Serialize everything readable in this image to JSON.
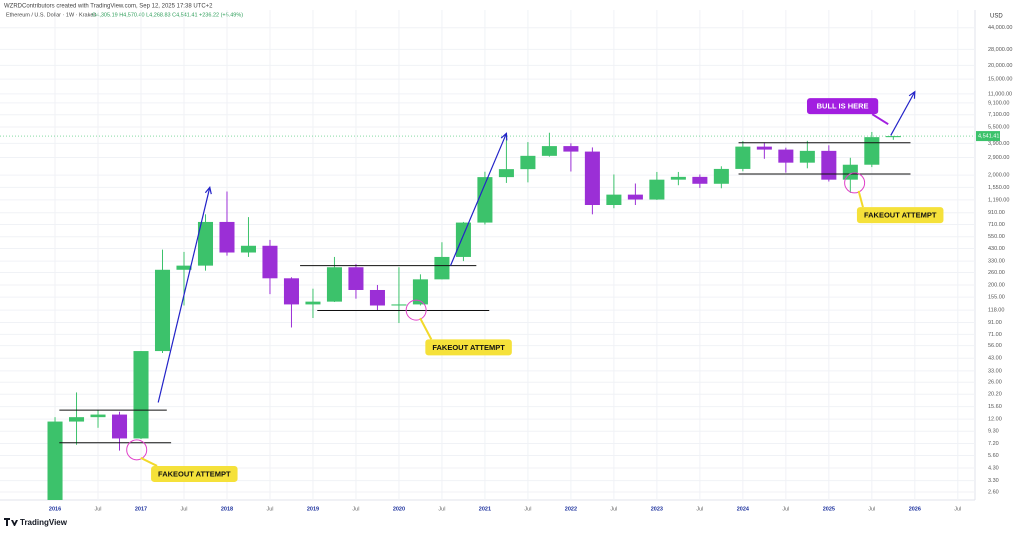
{
  "header": {
    "credit": "WZRDContributors created with TradingView.com, Sep 12, 2025 17:38 UTC+2",
    "symbol": "Ethereum / U.S. Dollar · 1W · Kraken",
    "ohlc": "O4,305.19 H4,570.40 L4,268.83 C4,541.41 +236.22 (+5.49%)",
    "currency": "USD",
    "last_price": "4,541.41",
    "logo": "TradingView"
  },
  "chart_data": {
    "type": "candlestick",
    "log_scale": true,
    "grid": true,
    "up_color": "#3cc26b",
    "down_color": "#9b2fd6",
    "x": [
      2016.0,
      2016.25,
      2016.5,
      2016.75,
      2017.0,
      2017.25,
      2017.5,
      2017.75,
      2018.0,
      2018.25,
      2018.5,
      2018.75,
      2019.0,
      2019.25,
      2019.5,
      2019.75,
      2020.0,
      2020.25,
      2020.5,
      2020.75,
      2021.0,
      2021.25,
      2021.5,
      2021.75,
      2022.0,
      2022.25,
      2022.5,
      2022.75,
      2023.0,
      2023.25,
      2023.5,
      2023.75,
      2024.0,
      2024.25,
      2024.5,
      2024.75,
      2025.0,
      2025.25,
      2025.5,
      2025.75
    ],
    "open": [
      0.95,
      11.4,
      12.5,
      13.2,
      8,
      50,
      275,
      300,
      750,
      395,
      455,
      230,
      133,
      141,
      290,
      180,
      130,
      133,
      225,
      360,
      740,
      1920,
      2270,
      3000,
      3680,
      3280,
      1070,
      1330,
      1200,
      1820,
      1930,
      1670,
      2280,
      3640,
      3420,
      2600,
      3330,
      1820,
      2490,
      4440
    ],
    "high": [
      12.5,
      21,
      14.5,
      14,
      50,
      420,
      400,
      880,
      1420,
      830,
      515,
      235,
      185,
      360,
      310,
      200,
      290,
      250,
      490,
      750,
      2150,
      4380,
      4000,
      4870,
      3900,
      3580,
      2030,
      1680,
      2140,
      2140,
      2030,
      2410,
      4090,
      3980,
      3560,
      4110,
      3740,
      2880,
      4950,
      4560
    ],
    "low": [
      0.93,
      7,
      10,
      6.2,
      7.9,
      48,
      130,
      270,
      370,
      360,
      165,
      82,
      100,
      140,
      150,
      117,
      90,
      130,
      225,
      330,
      710,
      1700,
      1720,
      2950,
      2160,
      880,
      1000,
      1070,
      1190,
      1620,
      1530,
      1520,
      2170,
      2820,
      2110,
      2310,
      1750,
      1380,
      2370,
      4200
    ],
    "close": [
      11.4,
      12.5,
      13.2,
      8,
      50,
      275,
      300,
      750,
      395,
      455,
      230,
      133,
      141,
      290,
      180,
      130,
      133,
      225,
      360,
      740,
      1920,
      2270,
      3000,
      3680,
      3280,
      1070,
      1330,
      1200,
      1820,
      1930,
      1670,
      2280,
      3640,
      3420,
      2600,
      3330,
      1820,
      2490,
      4440,
      4541
    ],
    "xlim": [
      2015.36,
      2026.7
    ],
    "xticks": [
      {
        "value": 2016,
        "label": "2016"
      },
      {
        "value": 2016.5,
        "label": "Jul"
      },
      {
        "value": 2017,
        "label": "2017"
      },
      {
        "value": 2017.5,
        "label": "Jul"
      },
      {
        "value": 2018,
        "label": "2018"
      },
      {
        "value": 2018.5,
        "label": "Jul"
      },
      {
        "value": 2019,
        "label": "2019"
      },
      {
        "value": 2019.5,
        "label": "Jul"
      },
      {
        "value": 2020,
        "label": "2020"
      },
      {
        "value": 2020.5,
        "label": "Jul"
      },
      {
        "value": 2021,
        "label": "2021"
      },
      {
        "value": 2021.5,
        "label": "Jul"
      },
      {
        "value": 2022,
        "label": "2022"
      },
      {
        "value": 2022.5,
        "label": "Jul"
      },
      {
        "value": 2023,
        "label": "2023"
      },
      {
        "value": 2023.5,
        "label": "Jul"
      },
      {
        "value": 2024,
        "label": "2024"
      },
      {
        "value": 2024.5,
        "label": "Jul"
      },
      {
        "value": 2025,
        "label": "2025"
      },
      {
        "value": 2025.5,
        "label": "Jul"
      },
      {
        "value": 2026,
        "label": "2026"
      },
      {
        "value": 2026.5,
        "label": "Jul"
      }
    ],
    "ylim": [
      2.2,
      60000
    ],
    "yticks": [
      {
        "value": 44000,
        "label": "44,000.00"
      },
      {
        "value": 28000,
        "label": "28,000.00"
      },
      {
        "value": 20000,
        "label": "20,000.00"
      },
      {
        "value": 15000,
        "label": "15,000.00"
      },
      {
        "value": 11000,
        "label": "11,000.00"
      },
      {
        "value": 9100,
        "label": "9,100.00"
      },
      {
        "value": 7100,
        "label": "7,100.00"
      },
      {
        "value": 5500,
        "label": "5,500.00"
      },
      {
        "value": 3900,
        "label": "3,900.00"
      },
      {
        "value": 2900,
        "label": "2,900.00"
      },
      {
        "value": 2000,
        "label": "2,000.00"
      },
      {
        "value": 1550,
        "label": "1,550.00"
      },
      {
        "value": 1190,
        "label": "1,190.00"
      },
      {
        "value": 910,
        "label": "910.00"
      },
      {
        "value": 710,
        "label": "710.00"
      },
      {
        "value": 550,
        "label": "550.00"
      },
      {
        "value": 430,
        "label": "430.00"
      },
      {
        "value": 330,
        "label": "330.00"
      },
      {
        "value": 260,
        "label": "260.00"
      },
      {
        "value": 200,
        "label": "200.00"
      },
      {
        "value": 155,
        "label": "155.00"
      },
      {
        "value": 118,
        "label": "118.00"
      },
      {
        "value": 91,
        "label": "91.00"
      },
      {
        "value": 71,
        "label": "71.00"
      },
      {
        "value": 56,
        "label": "56.00"
      },
      {
        "value": 43,
        "label": "43.00"
      },
      {
        "value": 33,
        "label": "33.00"
      },
      {
        "value": 26,
        "label": "26.00"
      },
      {
        "value": 20.2,
        "label": "20.20"
      },
      {
        "value": 15.6,
        "label": "15.60"
      },
      {
        "value": 12,
        "label": "12.00"
      },
      {
        "value": 9.3,
        "label": "9.30"
      },
      {
        "value": 7.2,
        "label": "7.20"
      },
      {
        "value": 5.6,
        "label": "5.60"
      },
      {
        "value": 4.3,
        "label": "4.30"
      },
      {
        "value": 3.3,
        "label": "3.30"
      },
      {
        "value": 2.6,
        "label": "2.60"
      }
    ],
    "levels": [
      {
        "x": [
          2016.05,
          2017.3
        ],
        "y": 14.5
      },
      {
        "x": [
          2016.05,
          2017.35
        ],
        "y": 7.3
      },
      {
        "x": [
          2018.85,
          2020.9
        ],
        "y": 300
      },
      {
        "x": [
          2019.05,
          2021.05
        ],
        "y": 117
      },
      {
        "x": [
          2023.95,
          2025.95
        ],
        "y": 3950
      },
      {
        "x": [
          2023.95,
          2025.95
        ],
        "y": 2050
      }
    ],
    "arrows": [
      {
        "x": [
          2017.2,
          2017.8
        ],
        "y": [
          17,
          1550
        ]
      },
      {
        "x": [
          2020.6,
          2021.25
        ],
        "y": [
          300,
          4800
        ]
      },
      {
        "x": [
          2025.72,
          2026.0
        ],
        "y": [
          4600,
          11500
        ]
      }
    ],
    "circles": [
      {
        "x": 2016.95,
        "y": 6.3
      },
      {
        "x": 2020.2,
        "y": 118
      },
      {
        "x": 2025.3,
        "y": 1700
      }
    ],
    "annotations": [
      {
        "text": "FAKEOUT ATTEMPT",
        "x": 2017.62,
        "y": 3.8,
        "style": "yellow"
      },
      {
        "text": "FAKEOUT ATTEMPT",
        "x": 2020.81,
        "y": 54,
        "style": "yellow"
      },
      {
        "text": "FAKEOUT ATTEMPT",
        "x": 2025.83,
        "y": 865,
        "style": "yellow"
      },
      {
        "text": "BULL IS HERE",
        "x": 2025.16,
        "y": 8500,
        "style": "purple"
      }
    ]
  }
}
